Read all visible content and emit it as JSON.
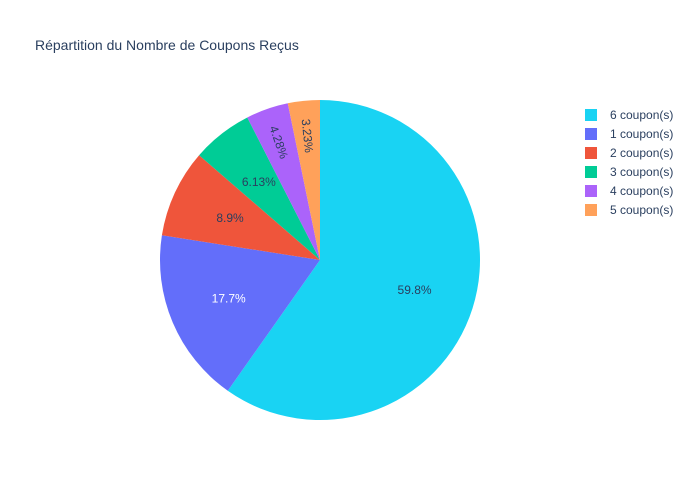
{
  "chart_data": {
    "type": "pie",
    "title": "Répartition du Nombre de Coupons Reçus",
    "slices": [
      {
        "label": "6 coupon(s)",
        "value": 59.8,
        "text": "59.8%",
        "color": "#19d3f3",
        "text_color": "#2a3f5f"
      },
      {
        "label": "1 coupon(s)",
        "value": 17.7,
        "text": "17.7%",
        "color": "#636efa",
        "text_color": "#ffffff"
      },
      {
        "label": "2 coupon(s)",
        "value": 8.9,
        "text": "8.9%",
        "color": "#ef553b",
        "text_color": "#2a3f5f"
      },
      {
        "label": "3 coupon(s)",
        "value": 6.13,
        "text": "6.13%",
        "color": "#00cc96",
        "text_color": "#2a3f5f"
      },
      {
        "label": "4 coupon(s)",
        "value": 4.28,
        "text": "4.28%",
        "color": "#ab63fa",
        "text_color": "#2a3f5f"
      },
      {
        "label": "5 coupon(s)",
        "value": 3.23,
        "text": "3.23%",
        "color": "#ffa15a",
        "text_color": "#2a3f5f"
      }
    ],
    "direction": "clockwise",
    "start_angle": "top",
    "legend_position": "right"
  }
}
